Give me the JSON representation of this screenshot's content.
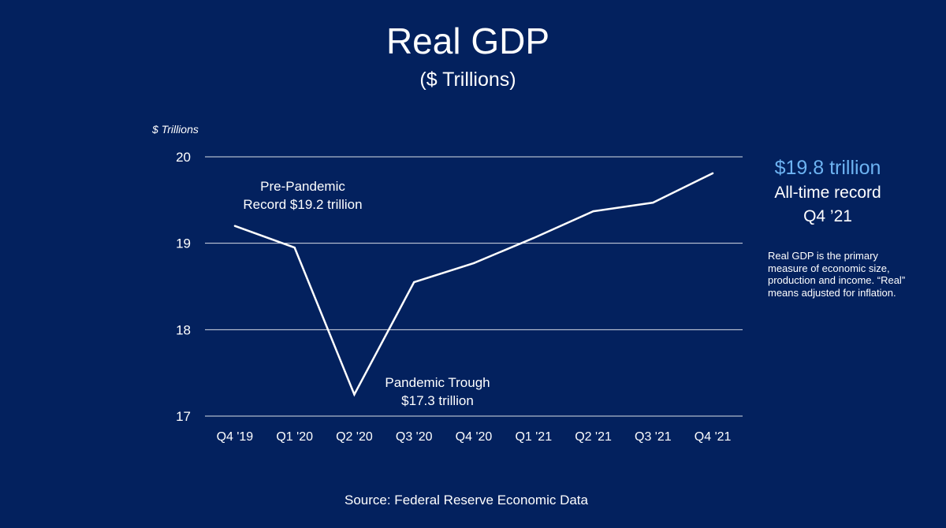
{
  "title": "Real GDP",
  "subtitle": "($ Trillions)",
  "highlight": {
    "value": "$19.8 trillion",
    "line1": "All-time record",
    "line2": "Q4 ’21"
  },
  "note": "Real GDP is the primary measure of economic size, production and income.  “Real” means adjusted for inflation.",
  "source": "Source:  Federal Reserve Economic Data",
  "colors": {
    "background": "#03215e",
    "line": "#ffffff",
    "gridline": "#ffffff",
    "highlight": "#6db3f2"
  },
  "chart_data": {
    "type": "line",
    "title": "Real GDP",
    "subtitle": "($ Trillions)",
    "ylabel": "$ Trillions",
    "xlabel": "",
    "categories": [
      "Q4 '19",
      "Q1 '20",
      "Q2 '20",
      "Q3 '20",
      "Q4 '20",
      "Q1 '21",
      "Q2 '21",
      "Q3 '21",
      "Q4 '21"
    ],
    "values": [
      19.2,
      18.95,
      17.25,
      18.55,
      18.77,
      19.06,
      19.37,
      19.47,
      19.81
    ],
    "ylim": [
      17,
      20
    ],
    "yticks": [
      17,
      18,
      19,
      20
    ],
    "grid": true,
    "legend": "none",
    "annotations": [
      {
        "lines": [
          "Pre-Pandemic",
          "Record $19.2 trillion"
        ],
        "point": 0
      },
      {
        "lines": [
          "Pandemic Trough",
          "$17.3 trillion"
        ],
        "point": 2
      }
    ]
  }
}
